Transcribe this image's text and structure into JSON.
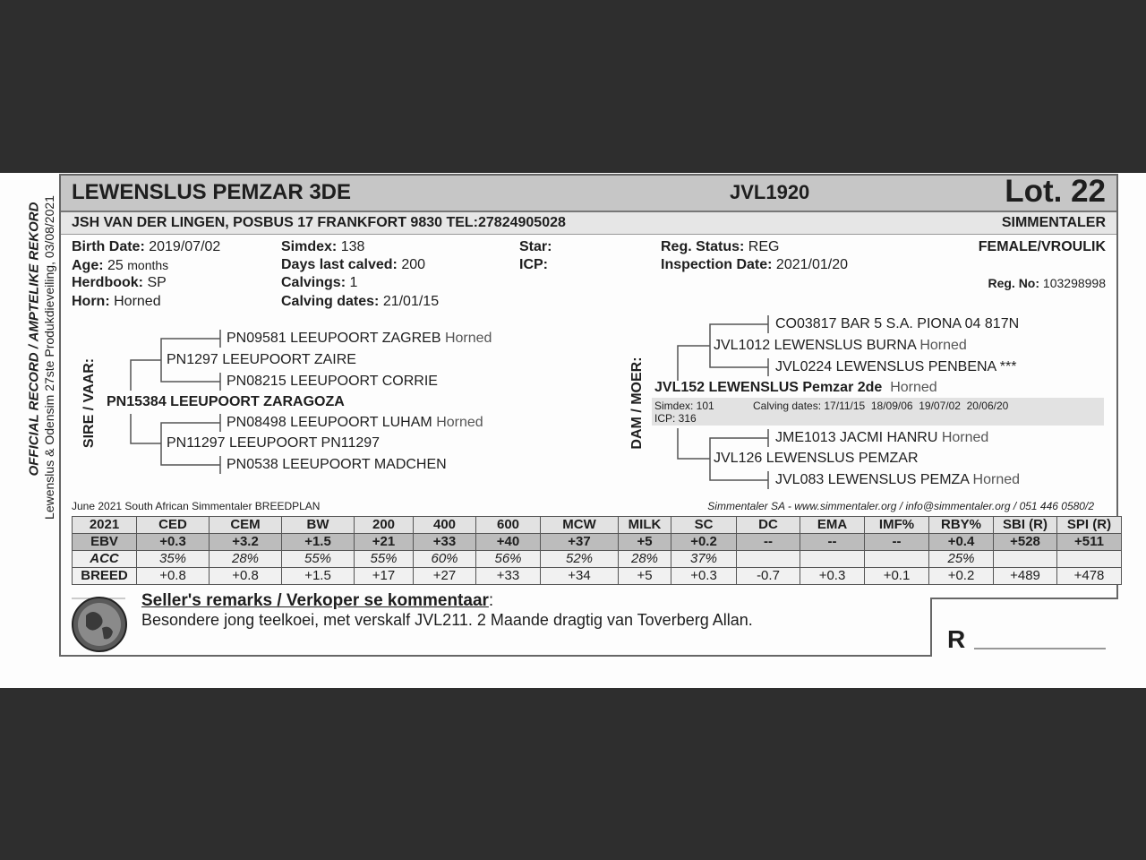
{
  "side": {
    "official": "OFFICIAL RECORD / AMPTELIKE REKORD",
    "sale": "Lewenslus & Odensim 27ste Produkdieveiling, 03/08/2021"
  },
  "header": {
    "animal_name": "LEWENSLUS PEMZAR 3DE",
    "animal_id": "JVL1920",
    "lot": "Lot. 22",
    "owner": "JSH VAN DER LINGEN, POSBUS 17 FRANKFORT 9830 TEL:27824905028",
    "breed": "SIMMENTALER"
  },
  "info": {
    "birth_date": {
      "label": "Birth Date:",
      "value": "2019/07/02"
    },
    "age": {
      "label": "Age:",
      "value": "25",
      "unit": "months"
    },
    "herdbook": {
      "label": "Herdbook:",
      "value": "SP"
    },
    "horn": {
      "label": "Horn:",
      "value": "Horned"
    },
    "simdex": {
      "label": "Simdex:",
      "value": "138"
    },
    "days_last_calved": {
      "label": "Days last calved:",
      "value": "200"
    },
    "calvings": {
      "label": "Calvings:",
      "value": "1"
    },
    "calving_dates": {
      "label": "Calving dates:",
      "value": "21/01/15"
    },
    "star": {
      "label": "Star:"
    },
    "icp": {
      "label": "ICP:"
    },
    "reg_status": {
      "label": "Reg. Status:",
      "value": "REG"
    },
    "inspection_date": {
      "label": "Inspection Date:",
      "value": "2021/01/20"
    },
    "sex": "FEMALE/VROULIK",
    "reg_no": {
      "label": "Reg. No:",
      "value": "103298998"
    }
  },
  "sire": {
    "label": "SIRE / VAAR:",
    "name": "PN15384 LEEUPOORT ZARAGOZA",
    "sire": {
      "name": "PN1297 LEEUPOORT ZAIRE"
    },
    "sire_sire": {
      "name": "PN09581 LEEUPOORT ZAGREB",
      "note": "Horned"
    },
    "sire_dam": {
      "name": "PN08215 LEEUPOORT CORRIE"
    },
    "dam": {
      "name": "PN11297 LEEUPOORT PN11297"
    },
    "dam_sire": {
      "name": "PN08498 LEEUPOORT LUHAM",
      "note": "Horned"
    },
    "dam_dam": {
      "name": "PN0538 LEEUPOORT MADCHEN"
    }
  },
  "dam": {
    "label": "DAM / MOER:",
    "name": "JVL152 LEWENSLUS Pemzar 2de",
    "note": "Horned",
    "simdex": "Simdex: 101",
    "icp": "ICP: 316",
    "calving_dates": "Calving dates: 17/11/15  18/09/06  19/07/02  20/06/20",
    "sire": {
      "name": "JVL1012 LEWENSLUS BURNA",
      "note": "Horned"
    },
    "sire_sire": {
      "name": "CO03817 BAR 5 S.A. PIONA 04 817N"
    },
    "sire_dam": {
      "name": "JVL0224 LEWENSLUS PENBENA ***"
    },
    "dam": {
      "name": "JVL126 LEWENSLUS PEMZAR"
    },
    "dam_sire": {
      "name": "JME1013 JACMI HANRU",
      "note": "Horned"
    },
    "dam_dam": {
      "name": "JVL083 LEWENSLUS PEMZA",
      "note": "Horned"
    }
  },
  "footer": {
    "breedplan": "June 2021 South African Simmentaler BREEDPLAN",
    "contact": "Simmentaler SA - www.simmentaler.org / info@simmentaler.org / 051 446 0580/2"
  },
  "ebv_table": {
    "headers": [
      "2021",
      "CED",
      "CEM",
      "BW",
      "200",
      "400",
      "600",
      "MCW",
      "MILK",
      "SC",
      "DC",
      "EMA",
      "IMF%",
      "RBY%",
      "SBI (R)",
      "SPI (R)"
    ],
    "rows": [
      [
        "EBV",
        "+0.3",
        "+3.2",
        "+1.5",
        "+21",
        "+33",
        "+40",
        "+37",
        "+5",
        "+0.2",
        "--",
        "--",
        "--",
        "+0.4",
        "+528",
        "+511"
      ],
      [
        "ACC",
        "35%",
        "28%",
        "55%",
        "55%",
        "60%",
        "56%",
        "52%",
        "28%",
        "37%",
        "",
        "",
        "",
        "25%",
        "",
        ""
      ],
      [
        "BREED",
        "+0.8",
        "+0.8",
        "+1.5",
        "+17",
        "+27",
        "+33",
        "+34",
        "+5",
        "+0.3",
        "-0.7",
        "+0.3",
        "+0.1",
        "+0.2",
        "+489",
        "+478"
      ]
    ]
  },
  "remarks": {
    "title": "Seller's remarks / Verkoper se kommentaar",
    "colon": ":",
    "text": "Besondere jong teelkoei, met verskalf JVL211. 2 Maande dragtig van Toverberg Allan."
  },
  "price": {
    "currency": "R"
  }
}
